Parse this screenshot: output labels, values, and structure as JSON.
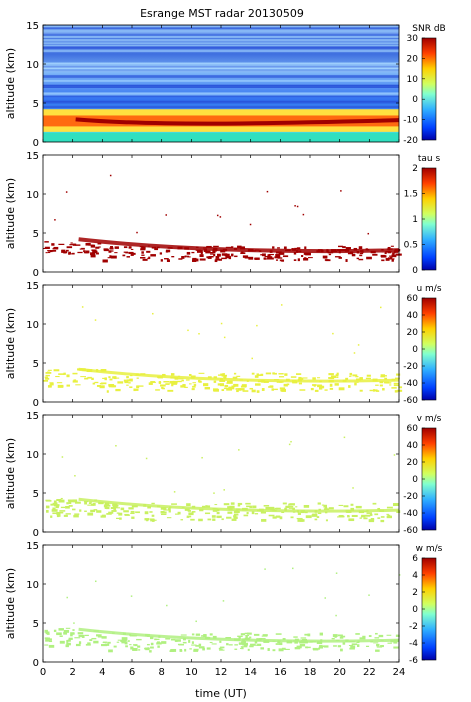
{
  "chart_data": {
    "type": "heatmap",
    "title": "Esrange MST radar 20130509",
    "xlabel": "time (UT)",
    "x_range": [
      0,
      24
    ],
    "x_ticks": [
      "0",
      "2",
      "4",
      "6",
      "8",
      "10",
      "12",
      "14",
      "16",
      "18",
      "20",
      "22",
      "24"
    ],
    "panels": [
      {
        "ylabel": "altitude (km)",
        "ylim": [
          0,
          15
        ],
        "y_ticks": [
          "0",
          "5",
          "10",
          "15"
        ],
        "colorbar_label": "SNR dB",
        "colorbar_ticks": [
          "30",
          "20",
          "10",
          "0",
          "-10",
          "-20"
        ],
        "clim": [
          -20,
          30
        ],
        "colormap": "jet"
      },
      {
        "ylabel": "altitude (km)",
        "ylim": [
          0,
          15
        ],
        "y_ticks": [
          "0",
          "5",
          "10",
          "15"
        ],
        "colorbar_label": "tau s",
        "colorbar_ticks": [
          "2",
          "1.5",
          "1",
          "0.5",
          "0"
        ],
        "clim": [
          0,
          2
        ],
        "colormap": "jet"
      },
      {
        "ylabel": "altitude (km)",
        "ylim": [
          0,
          15
        ],
        "y_ticks": [
          "0",
          "5",
          "10",
          "15"
        ],
        "colorbar_label": "u m/s",
        "colorbar_ticks": [
          "60",
          "40",
          "20",
          "0",
          "-20",
          "-40",
          "-60"
        ],
        "clim": [
          -60,
          60
        ],
        "colormap": "jet"
      },
      {
        "ylabel": "altitude (km)",
        "ylim": [
          0,
          15
        ],
        "y_ticks": [
          "0",
          "5",
          "10",
          "15"
        ],
        "colorbar_label": "v m/s",
        "colorbar_ticks": [
          "60",
          "40",
          "20",
          "0",
          "-20",
          "-40",
          "-60"
        ],
        "clim": [
          -60,
          60
        ],
        "colormap": "jet"
      },
      {
        "ylabel": "altitude (km)",
        "ylim": [
          0,
          15
        ],
        "y_ticks": [
          "0",
          "5",
          "10",
          "15"
        ],
        "colorbar_label": "w m/s",
        "colorbar_ticks": [
          "6",
          "4",
          "2",
          "0",
          "-2",
          "-4",
          "-6"
        ],
        "clim": [
          -6,
          6
        ],
        "colormap": "jet"
      }
    ],
    "grid": false
  }
}
